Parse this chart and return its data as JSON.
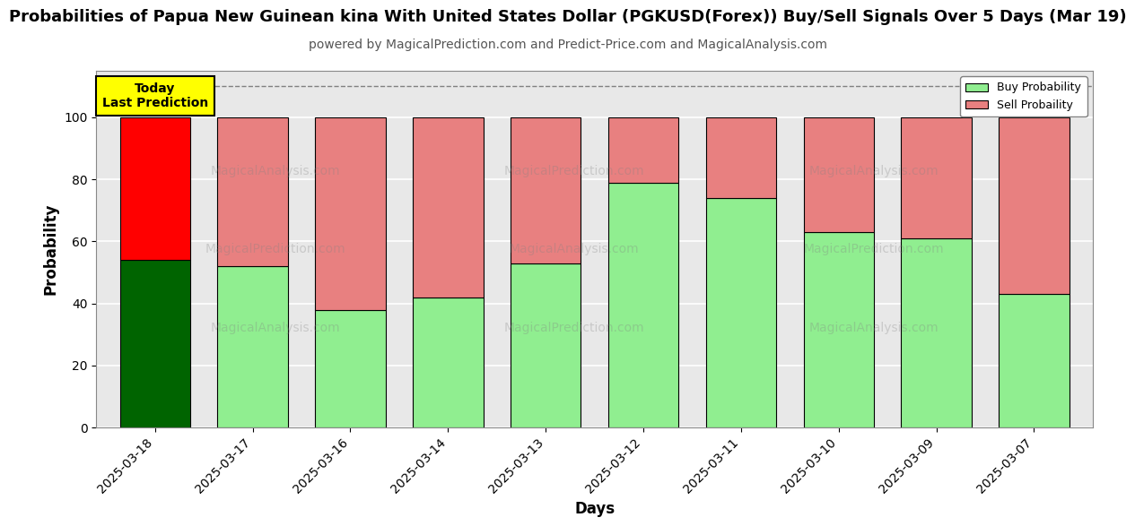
{
  "title": "Probabilities of Papua New Guinean kina With United States Dollar (PGKUSD(Forex)) Buy/Sell Signals Over 5 Days (Mar 19)",
  "subtitle": "powered by MagicalPrediction.com and Predict-Price.com and MagicalAnalysis.com",
  "xlabel": "Days",
  "ylabel": "Probability",
  "categories": [
    "2025-03-18",
    "2025-03-17",
    "2025-03-16",
    "2025-03-14",
    "2025-03-13",
    "2025-03-12",
    "2025-03-11",
    "2025-03-10",
    "2025-03-09",
    "2025-03-07"
  ],
  "buy_values": [
    54,
    52,
    38,
    42,
    53,
    79,
    74,
    63,
    61,
    43
  ],
  "sell_values": [
    46,
    48,
    62,
    58,
    47,
    21,
    26,
    37,
    39,
    57
  ],
  "today_buy_color": "#006400",
  "today_sell_color": "#ff0000",
  "normal_buy_color": "#90EE90",
  "normal_sell_color": "#E88080",
  "bar_edge_color": "#000000",
  "ylim": [
    0,
    115
  ],
  "yticks": [
    0,
    20,
    40,
    60,
    80,
    100
  ],
  "dashed_line_y": 110,
  "legend_buy_label": "Buy Probability",
  "legend_sell_label": "Sell Probaility",
  "today_label_line1": "Today",
  "today_label_line2": "Last Prediction",
  "plot_bg_color": "#e8e8e8",
  "fig_bg_color": "#ffffff",
  "grid_color": "#ffffff",
  "title_fontsize": 13,
  "subtitle_fontsize": 10,
  "axis_label_fontsize": 12,
  "tick_fontsize": 10,
  "bar_width": 0.72
}
